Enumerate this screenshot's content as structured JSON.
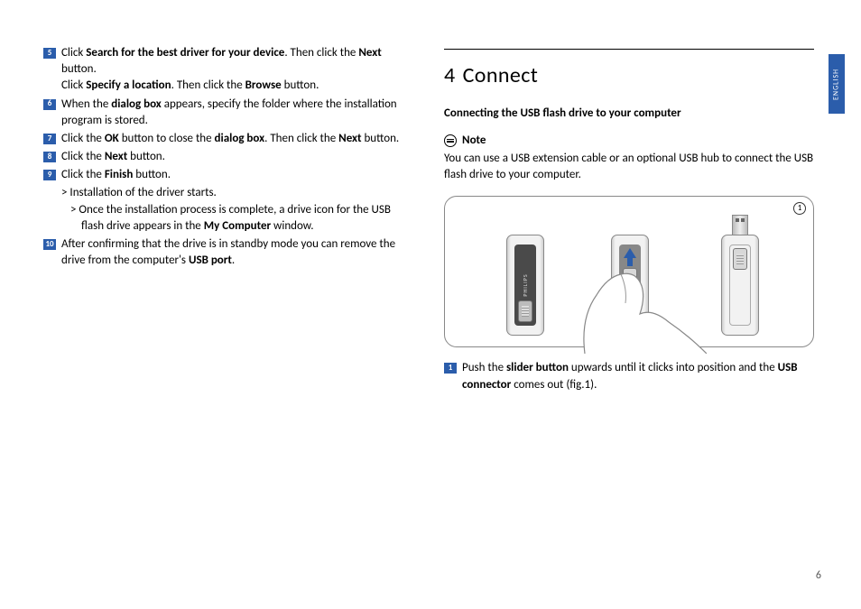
{
  "brand_color": "#2b5dab",
  "side_tab": "ENGLISH",
  "page_number": "6",
  "left": {
    "steps": [
      {
        "num": "5",
        "lines": [
          "Click <b>Search for the best driver for your device</b>. Then click the <b>Next</b> button.",
          "Click <b>Specify a location</b>. Then click the <b>Browse</b> button."
        ]
      },
      {
        "num": "6",
        "lines": [
          "When the <b>dialog box</b> appears, specify the folder where the installation program is stored."
        ]
      },
      {
        "num": "7",
        "lines": [
          "Click the <b>OK</b> button to close the <b>dialog box</b>. Then click the <b>Next</b> button."
        ]
      },
      {
        "num": "8",
        "lines": [
          "Click the <b>Next</b> button."
        ]
      },
      {
        "num": "9",
        "lines": [
          "Click the <b>Finish</b> button."
        ],
        "subs": [
          "> Installation of the driver starts.",
          "> Once the installation process is complete, a drive icon for the USB flash drive appears in the <b>My Computer</b> window."
        ]
      },
      {
        "num": "10",
        "lines": [
          "After confirming that the drive is in standby mode you can remove the drive from the computer's <b>USB port</b>."
        ]
      }
    ]
  },
  "right": {
    "section_num": "4",
    "section_title": "Connect",
    "subhead": "Connecting the USB flash drive to your computer",
    "note_label": "Note",
    "note_text": "You can use a USB extension cable or an optional USB hub to connect the USB flash drive to your computer.",
    "figure_index": "1",
    "usb_label": "PHILIPS",
    "step": {
      "num": "1",
      "text": "Push the <b>slider button</b> upwards until it clicks into position and the <b>USB connector</b> comes out (fig.1)."
    }
  }
}
